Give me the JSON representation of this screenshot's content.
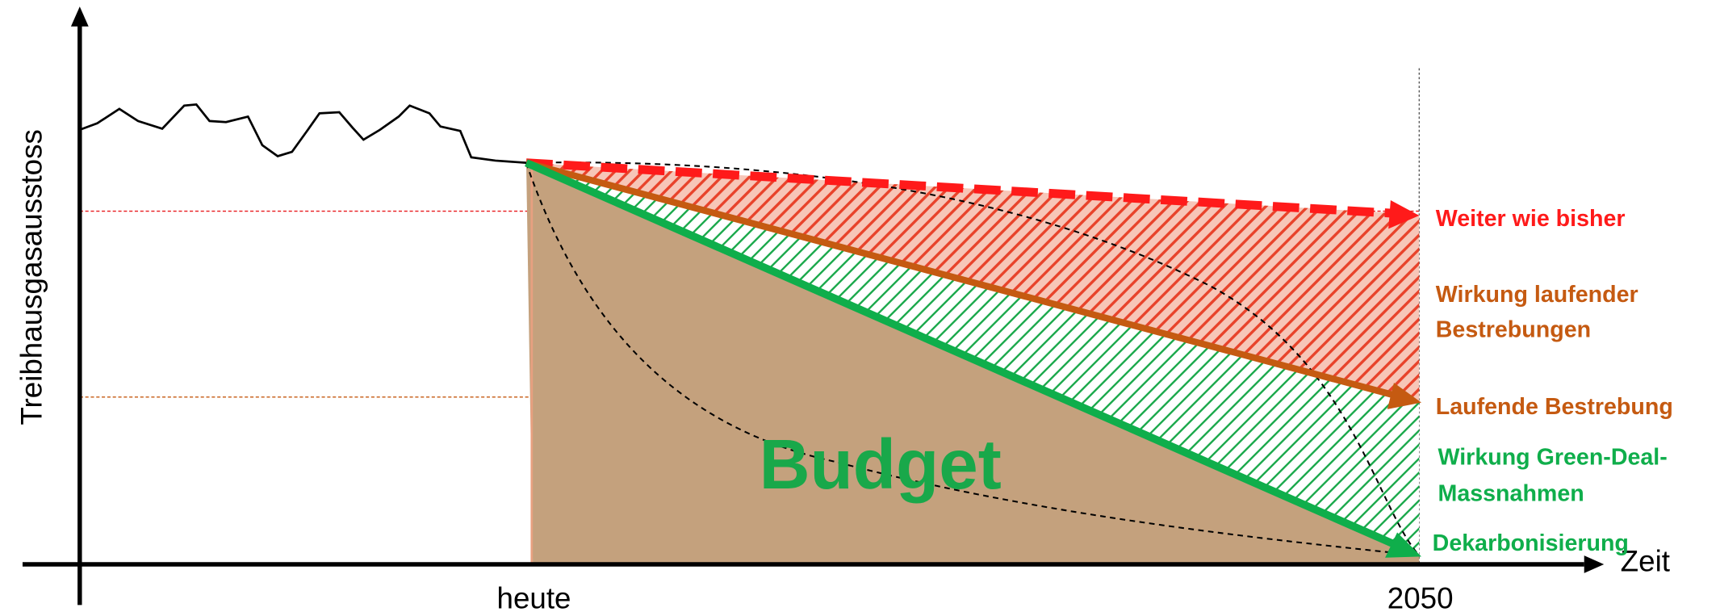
{
  "axes": {
    "y_label": "Treibhausgasausstoss",
    "x_label": "Zeit",
    "x_ticks": [
      "heute",
      "2050"
    ]
  },
  "scenarios": {
    "business_as_usual": "Weiter wie bisher",
    "effect_current": [
      "Wirkung laufender",
      "Bestrebungen"
    ],
    "current_efforts": "Laufende Bestrebung",
    "effect_green_deal": [
      "Wirkung Green-Deal-",
      "Massnahmen"
    ],
    "decarbonisation": "Dekarbonisierung"
  },
  "budget": "Budget"
}
